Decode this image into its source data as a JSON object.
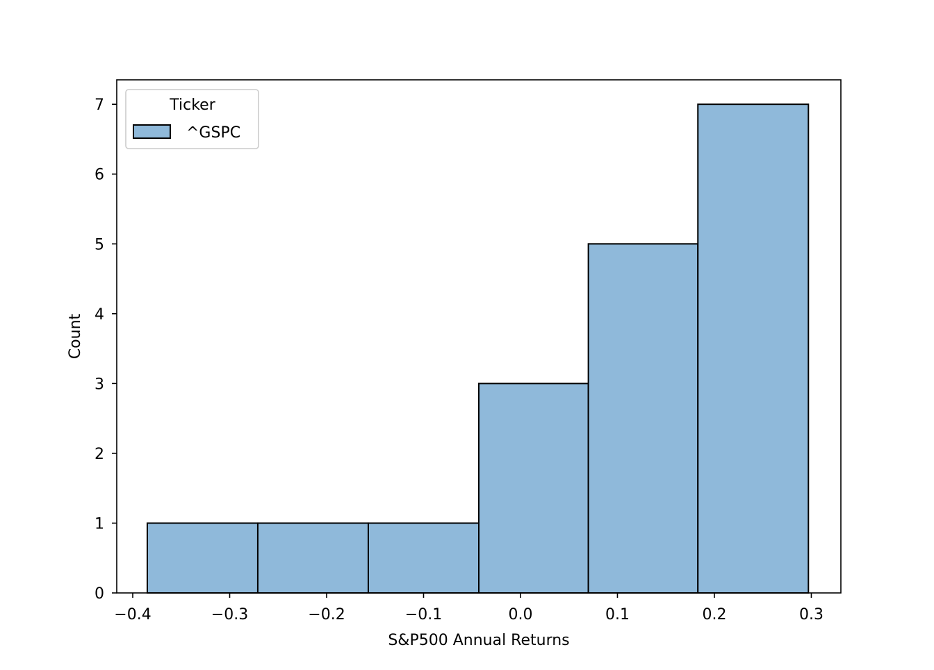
{
  "chart_data": {
    "type": "bar",
    "subtype": "histogram",
    "title": "",
    "xlabel": "S&P500 Annual Returns",
    "ylabel": "Count",
    "bin_edges": [
      -0.385,
      -0.271,
      -0.157,
      -0.043,
      0.07,
      0.183,
      0.297
    ],
    "series": [
      {
        "name": "^GSPC",
        "values": [
          1,
          1,
          1,
          3,
          5,
          7
        ]
      }
    ],
    "xlim": [
      -0.4165,
      0.3305
    ],
    "ylim": [
      0,
      7.35
    ],
    "xticks": [
      -0.4,
      -0.3,
      -0.2,
      -0.1,
      0.0,
      0.1,
      0.2,
      0.3
    ],
    "xtick_labels": [
      "−0.4",
      "−0.3",
      "−0.2",
      "−0.1",
      "0.0",
      "0.1",
      "0.2",
      "0.3"
    ],
    "yticks": [
      0,
      1,
      2,
      3,
      4,
      5,
      6,
      7
    ],
    "ytick_labels": [
      "0",
      "1",
      "2",
      "3",
      "4",
      "5",
      "6",
      "7"
    ],
    "grid": false,
    "legend": {
      "title": "Ticker",
      "position": "top-left"
    },
    "colors": {
      "bar_fill": "#8fb9da",
      "bar_edge": "#000000",
      "axis": "#000000"
    }
  }
}
